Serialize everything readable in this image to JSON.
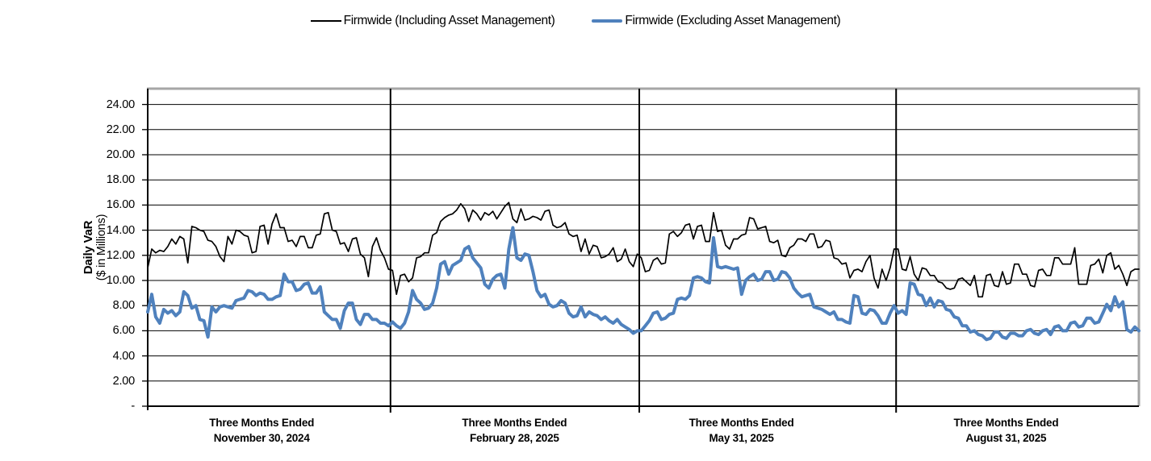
{
  "legend": {
    "items": [
      {
        "swatch": "black-line"
      },
      {
        "swatch": "blue-line"
      }
    ]
  },
  "y_axis": {
    "title_line1": "Daily VaR",
    "title_line2": "($ in Millions)",
    "ticks": [
      {
        "label": "24.00",
        "value": 24
      },
      {
        "label": "22.00",
        "value": 22
      },
      {
        "label": "20.00",
        "value": 20
      },
      {
        "label": "18.00",
        "value": 18
      },
      {
        "label": "16.00",
        "value": 16
      },
      {
        "label": "14.00",
        "value": 14
      },
      {
        "label": "12.00",
        "value": 12
      },
      {
        "label": "10.00",
        "value": 10
      },
      {
        "label": "8.00",
        "value": 8
      },
      {
        "label": "6.00",
        "value": 6
      },
      {
        "label": "4.00",
        "value": 4
      },
      {
        "label": "2.00",
        "value": 2
      },
      {
        "label": "-",
        "value": 0
      }
    ]
  },
  "x_axis": {
    "labels": [
      {
        "line1": "Three Months Ended",
        "line2": "November 30, 2024",
        "center_frac": 0.115
      },
      {
        "line1": "Three Months Ended",
        "line2": "February 28, 2025",
        "center_frac": 0.37
      },
      {
        "line1": "Three Months Ended",
        "line2": "May 31, 2025",
        "center_frac": 0.599
      },
      {
        "line1": "Three Months Ended",
        "line2": "August 31, 2025",
        "center_frac": 0.866
      }
    ]
  },
  "chart_data": {
    "type": "line",
    "ylabel": "Daily VaR ($ in Millions)",
    "ylim": [
      0,
      25.3
    ],
    "grid": "horizontal",
    "legend_position": "top-center",
    "gridline_values": [
      2,
      4,
      6,
      8,
      10,
      12,
      14,
      16,
      18,
      20,
      22,
      24
    ],
    "colors": {
      "including": "#000000",
      "excluding": "#4F81BD",
      "border_gray": "#A6A6A6"
    },
    "quarter_labels": [
      "Three Months Ended November 30, 2024",
      "Three Months Ended February 28, 2025",
      "Three Months Ended May 31, 2025",
      "Three Months Ended August 31, 2025"
    ],
    "series": [
      {
        "name": "Firmwide (Including Asset Management)",
        "color": "#000000",
        "stroke_width": 1.7,
        "quarters": [
          [
            11.0,
            12.5,
            12.2,
            12.4,
            12.3,
            12.7,
            13.3,
            12.9,
            13.5,
            13.3,
            11.4,
            14.3,
            14.2,
            14.0,
            13.9,
            13.2,
            13.1,
            12.7,
            11.9,
            11.5,
            13.5,
            12.9,
            14.0,
            13.9,
            13.6,
            13.5,
            12.2,
            12.3,
            14.3,
            14.4,
            12.9,
            14.5,
            15.3,
            14.2,
            14.2,
            13.1,
            13.2,
            12.7,
            13.5,
            13.5,
            12.6,
            12.6,
            13.6,
            13.7,
            15.3,
            15.4,
            14.0,
            13.9,
            12.9,
            13.0,
            12.3,
            13.3,
            13.4,
            12.1,
            11.8,
            10.3,
            12.7,
            13.4,
            12.4,
            11.8,
            10.9
          ],
          [
            10.8,
            8.9,
            10.4,
            10.5,
            9.9,
            10.2,
            11.8,
            11.9,
            12.2,
            12.2,
            13.6,
            13.8,
            14.7,
            15.0,
            15.2,
            15.3,
            15.6,
            16.1,
            15.7,
            14.7,
            15.6,
            15.3,
            14.8,
            15.4,
            15.2,
            15.5,
            14.9,
            15.4,
            15.9,
            16.2,
            14.9,
            14.6,
            15.7,
            14.8,
            14.9,
            15.1,
            15.0,
            14.8,
            15.5,
            15.6,
            14.4,
            14.2,
            14.3,
            14.6,
            13.7,
            13.5,
            13.6,
            12.3,
            13.3,
            12.1,
            12.8,
            12.7,
            11.8,
            11.9,
            12.1,
            12.6,
            11.5,
            11.7,
            12.5,
            11.5,
            11.1,
            12.1
          ],
          [
            11.8,
            10.7,
            10.8,
            11.6,
            11.8,
            11.3,
            11.4,
            13.7,
            13.9,
            13.5,
            13.8,
            14.4,
            14.5,
            13.3,
            14.3,
            14.4,
            13.1,
            13.1,
            15.4,
            13.9,
            14.0,
            12.8,
            12.5,
            13.3,
            13.3,
            13.6,
            13.7,
            15.0,
            14.9,
            14.1,
            14.2,
            14.3,
            13.1,
            13.0,
            13.2,
            12.0,
            11.9,
            12.6,
            12.8,
            13.3,
            13.3,
            13.1,
            13.7,
            13.7,
            12.6,
            12.7,
            13.2,
            13.1,
            11.8,
            11.7,
            11.3,
            11.4,
            10.2,
            10.8,
            10.9,
            10.7,
            11.5,
            12.0,
            10.2,
            9.4,
            10.9,
            10.0,
            11.0,
            12.5
          ],
          [
            12.5,
            10.9,
            10.8,
            11.9,
            10.5,
            10.0,
            11.0,
            10.9,
            10.4,
            10.4,
            9.9,
            9.8,
            9.4,
            9.3,
            9.4,
            10.1,
            10.2,
            9.9,
            9.6,
            10.4,
            8.7,
            8.7,
            10.4,
            10.5,
            9.6,
            9.5,
            10.7,
            9.7,
            9.8,
            11.3,
            11.3,
            10.5,
            10.5,
            9.6,
            9.5,
            10.8,
            10.9,
            10.4,
            10.4,
            11.8,
            11.8,
            11.3,
            11.3,
            11.3,
            12.6,
            9.7,
            9.7,
            9.7,
            11.2,
            11.3,
            11.7,
            10.6,
            12.0,
            12.2,
            10.9,
            11.2,
            10.5,
            9.6,
            10.7,
            10.9,
            10.9
          ]
        ]
      },
      {
        "name": "Firmwide (Excluding Asset Management)",
        "color": "#4F81BD",
        "stroke_width": 4,
        "quarters": [
          [
            7.5,
            8.9,
            7.1,
            6.6,
            7.7,
            7.4,
            7.6,
            7.2,
            7.5,
            9.1,
            8.8,
            7.8,
            8.0,
            6.9,
            6.8,
            5.5,
            7.9,
            7.5,
            7.9,
            8.0,
            7.9,
            7.8,
            8.4,
            8.5,
            8.6,
            9.2,
            9.1,
            8.8,
            9.0,
            8.9,
            8.5,
            8.5,
            8.7,
            8.8,
            10.5,
            9.9,
            9.9,
            9.2,
            9.3,
            9.7,
            9.8,
            9.0,
            9.0,
            9.5,
            7.5,
            7.2,
            6.9,
            6.9,
            6.2,
            7.6,
            8.2,
            8.2,
            6.9,
            6.5,
            7.3,
            7.3,
            6.9,
            6.9,
            6.6,
            6.6,
            6.4
          ],
          [
            6.7,
            6.4,
            6.2,
            6.6,
            7.5,
            9.2,
            8.5,
            8.2,
            7.7,
            7.8,
            8.2,
            9.4,
            11.3,
            11.5,
            10.5,
            11.2,
            11.4,
            11.6,
            12.5,
            12.7,
            11.8,
            11.4,
            11.0,
            9.7,
            9.4,
            10.1,
            10.4,
            10.5,
            9.4,
            12.5,
            14.2,
            11.8,
            11.6,
            12.1,
            12.0,
            10.7,
            9.2,
            8.7,
            8.9,
            8.1,
            7.9,
            8.0,
            8.4,
            8.2,
            7.4,
            7.1,
            7.2,
            7.9,
            7.1,
            7.5,
            7.3,
            7.2,
            6.9,
            7.1,
            6.8,
            6.6,
            6.9,
            6.5,
            6.3,
            6.1,
            5.8,
            6.0
          ],
          [
            6.0,
            6.4,
            6.8,
            7.4,
            7.5,
            6.9,
            7.0,
            7.3,
            7.4,
            8.5,
            8.6,
            8.5,
            8.8,
            10.2,
            10.3,
            10.2,
            9.9,
            9.8,
            13.4,
            11.1,
            11.0,
            11.1,
            11.0,
            10.9,
            11.0,
            8.9,
            10.0,
            10.3,
            10.5,
            10.0,
            10.1,
            10.7,
            10.7,
            10.0,
            10.1,
            10.7,
            10.6,
            10.2,
            9.4,
            9.0,
            8.7,
            8.8,
            8.9,
            7.9,
            7.8,
            7.7,
            7.5,
            7.3,
            7.5,
            6.9,
            6.9,
            6.7,
            6.6,
            8.8,
            8.7,
            7.4,
            7.3,
            7.7,
            7.6,
            7.2,
            6.6,
            6.6,
            7.4,
            8.0
          ],
          [
            7.4,
            7.6,
            7.3,
            9.8,
            9.7,
            8.9,
            8.8,
            8.0,
            8.6,
            7.9,
            8.4,
            8.3,
            7.7,
            7.6,
            7.1,
            7.0,
            6.4,
            6.4,
            5.9,
            6.0,
            5.7,
            5.6,
            5.3,
            5.4,
            5.9,
            5.9,
            5.5,
            5.4,
            5.8,
            5.8,
            5.6,
            5.6,
            6.0,
            6.1,
            5.8,
            5.7,
            6.0,
            6.1,
            5.7,
            6.3,
            6.4,
            6.0,
            6.0,
            6.6,
            6.7,
            6.3,
            6.4,
            7.0,
            7.0,
            6.6,
            6.7,
            7.4,
            8.1,
            7.6,
            8.7,
            7.9,
            8.3,
            6.1,
            5.9,
            6.3,
            6.0
          ]
        ]
      }
    ]
  }
}
